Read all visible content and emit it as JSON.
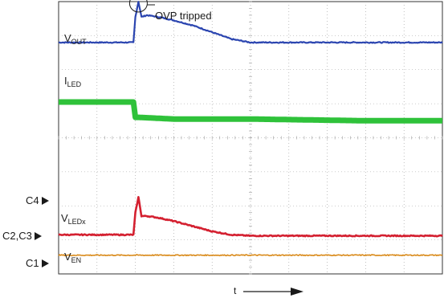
{
  "chart_data": {
    "type": "line",
    "title": "",
    "xlabel": "t",
    "ylabel": "",
    "grid": true,
    "annotation": "OVP tripped",
    "channel_markers": [
      "C4",
      "C2,C3",
      "C1"
    ],
    "series": [
      {
        "name": "VOUT",
        "label_main": "V",
        "label_sub": "OUT",
        "color": "#2b45b0",
        "x": [
          0,
          1.8,
          1.95,
          2.0,
          2.08,
          2.16,
          2.3,
          2.6,
          3.0,
          3.5,
          4.0,
          4.5,
          5.0,
          6.0,
          7.0,
          8.0,
          9.0,
          10.0
        ],
        "y": [
          2.8,
          2.8,
          2.8,
          3.55,
          4.0,
          3.55,
          3.6,
          3.55,
          3.45,
          3.3,
          3.1,
          2.9,
          2.8,
          2.8,
          2.8,
          2.8,
          2.8,
          2.8
        ]
      },
      {
        "name": "ILED",
        "label_main": "I",
        "label_sub": "LED",
        "color": "#2fc23a",
        "x": [
          0,
          1.95,
          2.0,
          2.08,
          3.0,
          5.0,
          8.0,
          10.0
        ],
        "y": [
          1.05,
          1.05,
          0.6,
          0.6,
          0.55,
          0.55,
          0.5,
          0.5
        ]
      },
      {
        "name": "VLEDx",
        "label_main": "V",
        "label_sub": "LEDx",
        "color": "#d42030",
        "x": [
          0,
          1.8,
          1.95,
          2.0,
          2.08,
          2.16,
          2.3,
          2.6,
          3.0,
          3.5,
          4.0,
          4.5,
          5.0,
          6.0,
          7.0,
          8.0,
          9.0,
          10.0
        ],
        "y": [
          -2.85,
          -2.85,
          -2.85,
          -2.2,
          -1.75,
          -2.3,
          -2.3,
          -2.35,
          -2.45,
          -2.6,
          -2.75,
          -2.85,
          -2.88,
          -2.88,
          -2.88,
          -2.88,
          -2.88,
          -2.88
        ]
      },
      {
        "name": "VEN",
        "label_main": "V",
        "label_sub": "EN",
        "color": "#d98a1a",
        "x": [
          0,
          10.0
        ],
        "y": [
          -3.45,
          -3.45
        ]
      }
    ],
    "xlim": [
      0,
      10
    ],
    "ylim": [
      -4,
      4
    ]
  }
}
